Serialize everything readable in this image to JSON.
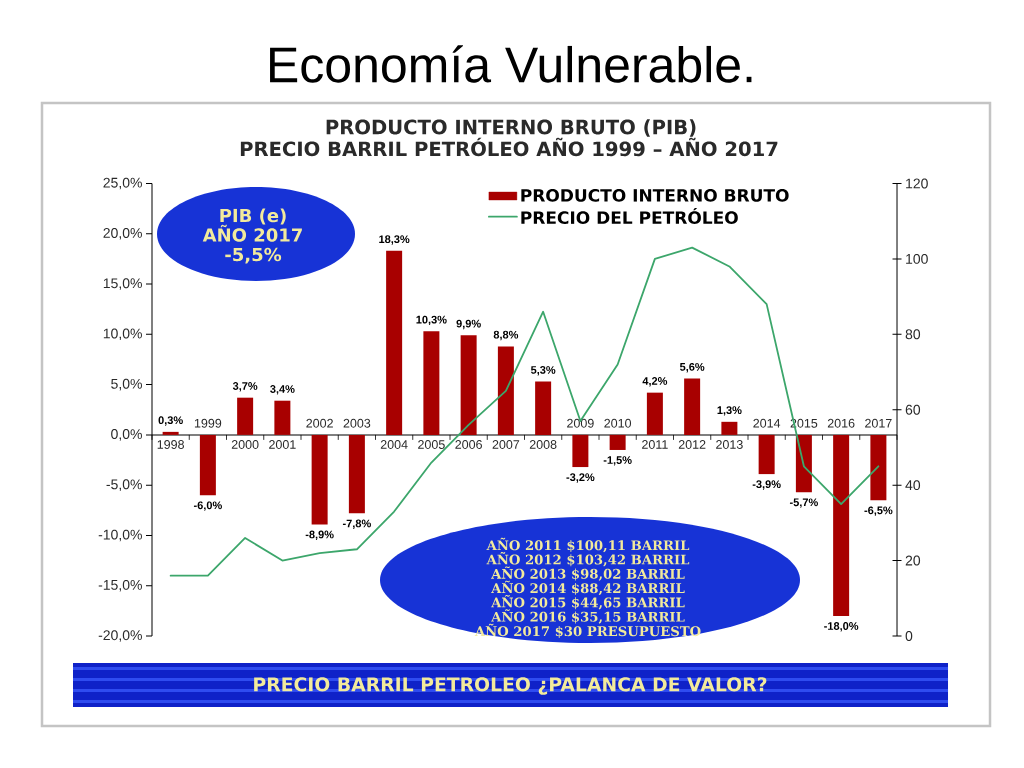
{
  "chart_data": {
    "type": "bar",
    "title": "Economía Vulnerable.",
    "subtitle": "PRODUCTO INTERNO BRUTO (PIB)",
    "categories": [
      "1998",
      "1999",
      "2000",
      "2001",
      "2002",
      "2003",
      "2004",
      "2005",
      "2006",
      "2007",
      "2008",
      "2009",
      "2010",
      "2011",
      "2012",
      "2013",
      "2014",
      "2015",
      "2016",
      "2017"
    ],
    "series": [
      {
        "name": "PRODUCTO INTERNO BRUTO",
        "color": "#a80000",
        "values": [
          0.3,
          -6.0,
          3.7,
          3.4,
          -8.9,
          -7.8,
          18.3,
          10.3,
          9.9,
          8.8,
          5.3,
          -3.2,
          -1.5,
          4.2,
          5.6,
          1.3,
          -3.9,
          -5.7,
          -18.0,
          -6.5
        ],
        "value_labels": [
          "0,3%",
          "-6,0%",
          "3,7%",
          "3,4%",
          "-8,9%",
          "-7,8%",
          "18,3%",
          "10,3%",
          "9,9%",
          "8,8%",
          "5,3%",
          "-3,2%",
          "-1,5%",
          "4,2%",
          "5,6%",
          "1,3%",
          "-3,9%",
          "-5,7%",
          "-18,0%",
          "-6,5%"
        ]
      },
      {
        "name": "PRECIO DEL PETRÓLEO",
        "type": "line",
        "axis": "y2",
        "color": "#3ca66b",
        "values": [
          16,
          16,
          26,
          20,
          22,
          23,
          33,
          46,
          56,
          65,
          86,
          57,
          72,
          100,
          103,
          98,
          88,
          45,
          35,
          45
        ]
      }
    ],
    "ylim": [
      -20,
      25
    ],
    "yticks": [
      {
        "value": -20,
        "label": "-20,0%"
      },
      {
        "value": -15,
        "label": "-15,0%"
      },
      {
        "value": -10,
        "label": "-10,0%"
      },
      {
        "value": -5,
        "label": "-5,0%"
      },
      {
        "value": 0,
        "label": "0,0%"
      },
      {
        "value": 5,
        "label": "5,0%"
      },
      {
        "value": 10,
        "label": "10,0%"
      },
      {
        "value": 15,
        "label": "15,0%"
      },
      {
        "value": 20,
        "label": "20,0%"
      },
      {
        "value": 25,
        "label": "25,0%"
      }
    ],
    "y2lim": [
      0,
      120
    ],
    "y2ticks": [
      0,
      20,
      40,
      60,
      80,
      100,
      120
    ],
    "legend": "top right",
    "annotations": [
      "PRECIO BARRIL PETRÓLEO AÑO 1999 – AÑO 2017",
      "PIB (e) AÑO 2017 -5,5%",
      "AÑO 2011 $100,11 BARRIL",
      "AÑO 2012 $103,42 BARRIL",
      "AÑO 2013 $98,02 BARRIL",
      "AÑO 2014 $88,42 BARRIL",
      "AÑO 2015 $44,65 BARRIL",
      "AÑO 2016 $35,15 BARRIL",
      "AÑO 2017 $30 PRESUPUESTO",
      "PRECIO BARRIL PETROLEO ¿PALANCA DE VALOR?"
    ]
  }
}
